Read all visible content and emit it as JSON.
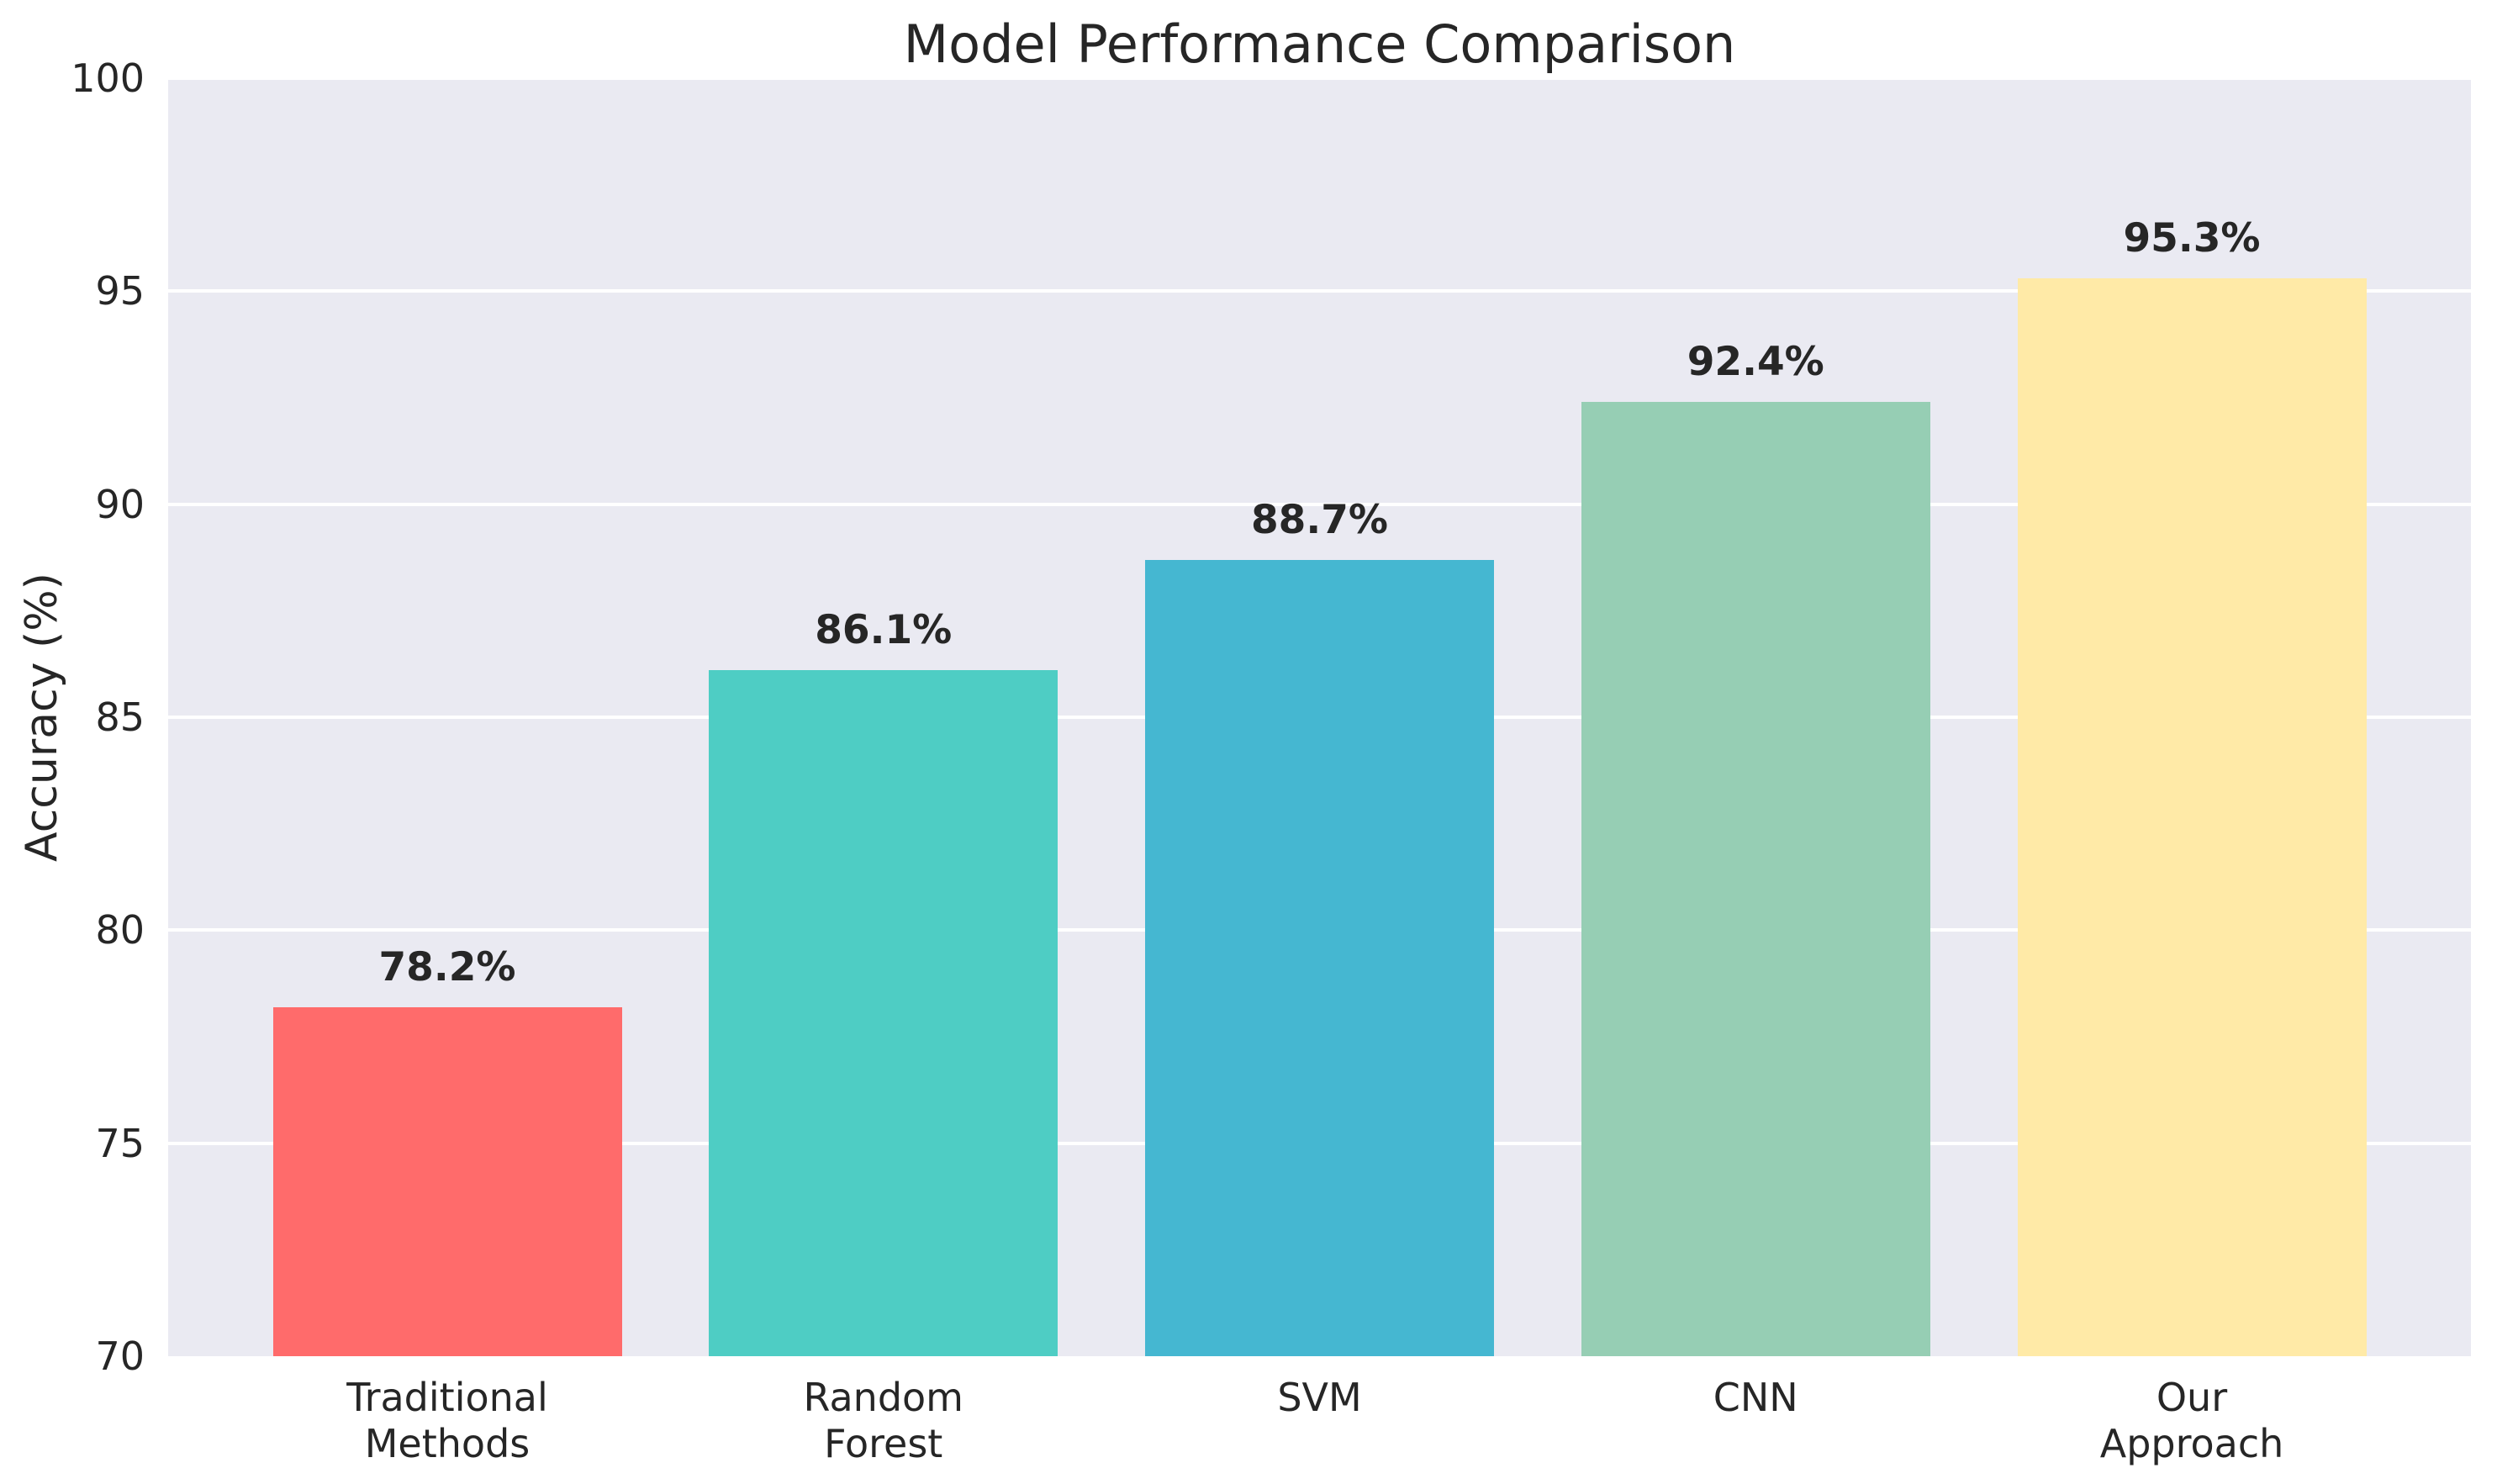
{
  "title": "Model Performance Comparison",
  "ylabel": "Accuracy (%)",
  "chart_data": {
    "type": "bar",
    "title": "Model Performance Comparison",
    "xlabel": "",
    "ylabel": "Accuracy (%)",
    "categories": [
      "Traditional\nMethods",
      "Random\nForest",
      "SVM",
      "CNN",
      "Our\nApproach"
    ],
    "values": [
      78.2,
      86.1,
      88.7,
      92.4,
      95.3
    ],
    "value_labels": [
      "78.2%",
      "86.1%",
      "88.7%",
      "92.4%",
      "95.3%"
    ],
    "bar_colors": [
      "#FF6B6B",
      "#4ECDC4",
      "#45B7D1",
      "#96CEB4",
      "#FFEAA7"
    ],
    "ylim": [
      70,
      100
    ],
    "yticks": [
      70,
      75,
      80,
      85,
      90,
      95,
      100
    ],
    "grid": true,
    "legend_position": "none",
    "plot_background_color": "#EAEAF2",
    "grid_color": "#FFFFFF",
    "text_color": "#262626"
  }
}
